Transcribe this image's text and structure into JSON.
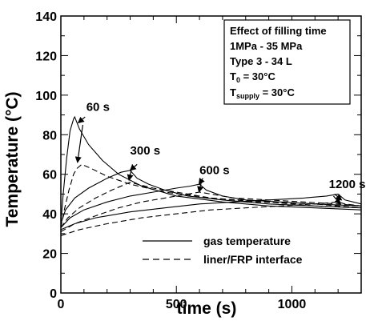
{
  "chart_data": {
    "type": "line",
    "title": "",
    "xlabel": "time (s)",
    "ylabel_parts": {
      "before": "Temperature (",
      "unit": "°C",
      "after": ")"
    },
    "xlim": [
      0,
      1300
    ],
    "ylim": [
      0,
      140
    ],
    "xticks": [
      0,
      500,
      1000
    ],
    "yticks": [
      0,
      20,
      40,
      60,
      80,
      100,
      120,
      140
    ],
    "info_box": {
      "title": "Effect of filling time",
      "pressure": "1MPa - 35 MPa",
      "type": "Type 3 - 34 L",
      "t0_main": "T",
      "t0_sub": "0",
      "t0_value": " = 30°C",
      "ts_main": "T",
      "ts_sub": "supply",
      "ts_value": " = 30°C"
    },
    "legend": {
      "position": "bottom-right",
      "entries": [
        {
          "label": "gas temperature",
          "style": "solid"
        },
        {
          "label": "liner/FRP interface",
          "style": "dashed"
        }
      ]
    },
    "annotations": [
      {
        "text": "60 s",
        "x": 110,
        "y": 92
      },
      {
        "text": "300 s",
        "x": 300,
        "y": 70
      },
      {
        "text": "600 s",
        "x": 600,
        "y": 60
      },
      {
        "text": "1200 s",
        "x": 1160,
        "y": 53
      }
    ],
    "arrows": [
      {
        "from": [
          105,
          89
        ],
        "to": [
          75,
          86
        ]
      },
      {
        "from": [
          95,
          85
        ],
        "to": [
          72,
          66
        ]
      },
      {
        "from": [
          330,
          65
        ],
        "to": [
          300,
          62
        ]
      },
      {
        "from": [
          310,
          65
        ],
        "to": [
          295,
          57
        ]
      },
      {
        "from": [
          615,
          58
        ],
        "to": [
          598,
          55
        ]
      },
      {
        "from": [
          610,
          57
        ],
        "to": [
          598,
          51
        ]
      },
      {
        "from": [
          1185,
          50
        ],
        "to": [
          1215,
          47
        ]
      },
      {
        "from": [
          1180,
          49
        ],
        "to": [
          1210,
          45
        ]
      }
    ],
    "series": [
      {
        "style": "solid",
        "points": [
          [
            0,
            35
          ],
          [
            10,
            50
          ],
          [
            25,
            68
          ],
          [
            40,
            82
          ],
          [
            55,
            88
          ],
          [
            60,
            89
          ],
          [
            80,
            83
          ],
          [
            120,
            75
          ],
          [
            180,
            67
          ],
          [
            250,
            60
          ],
          [
            350,
            54
          ],
          [
            500,
            49
          ],
          [
            700,
            46
          ],
          [
            900,
            44
          ],
          [
            1100,
            43
          ],
          [
            1300,
            42
          ]
        ]
      },
      {
        "style": "dashed",
        "points": [
          [
            0,
            33
          ],
          [
            15,
            42
          ],
          [
            35,
            52
          ],
          [
            55,
            60
          ],
          [
            60,
            61
          ],
          [
            70,
            63
          ],
          [
            90,
            65
          ],
          [
            130,
            63
          ],
          [
            200,
            59
          ],
          [
            300,
            55
          ],
          [
            450,
            51
          ],
          [
            650,
            48
          ],
          [
            900,
            46
          ],
          [
            1100,
            44
          ],
          [
            1300,
            43
          ]
        ]
      },
      {
        "style": "solid",
        "points": [
          [
            0,
            35
          ],
          [
            20,
            42
          ],
          [
            60,
            48
          ],
          [
            120,
            53
          ],
          [
            200,
            58
          ],
          [
            260,
            61
          ],
          [
            300,
            62
          ],
          [
            330,
            58
          ],
          [
            380,
            55
          ],
          [
            450,
            52
          ],
          [
            550,
            49
          ],
          [
            700,
            47
          ],
          [
            900,
            45
          ],
          [
            1100,
            44
          ],
          [
            1300,
            43
          ]
        ]
      },
      {
        "style": "dashed",
        "points": [
          [
            0,
            33
          ],
          [
            30,
            38
          ],
          [
            80,
            43
          ],
          [
            150,
            48
          ],
          [
            220,
            52
          ],
          [
            280,
            55
          ],
          [
            300,
            56
          ],
          [
            330,
            55
          ],
          [
            400,
            53
          ],
          [
            500,
            51
          ],
          [
            650,
            48
          ],
          [
            850,
            46
          ],
          [
            1100,
            45
          ],
          [
            1300,
            43
          ]
        ]
      },
      {
        "style": "solid",
        "points": [
          [
            0,
            33
          ],
          [
            40,
            38
          ],
          [
            100,
            42
          ],
          [
            200,
            46
          ],
          [
            300,
            49
          ],
          [
            400,
            51
          ],
          [
            500,
            53
          ],
          [
            560,
            54
          ],
          [
            600,
            55
          ],
          [
            630,
            52
          ],
          [
            700,
            49
          ],
          [
            800,
            47
          ],
          [
            950,
            46
          ],
          [
            1100,
            45
          ],
          [
            1300,
            44
          ]
        ]
      },
      {
        "style": "dashed",
        "points": [
          [
            0,
            31
          ],
          [
            60,
            35
          ],
          [
            150,
            39
          ],
          [
            250,
            43
          ],
          [
            350,
            46
          ],
          [
            450,
            48
          ],
          [
            550,
            50
          ],
          [
            600,
            51
          ],
          [
            650,
            50
          ],
          [
            750,
            48
          ],
          [
            900,
            47
          ],
          [
            1050,
            46
          ],
          [
            1200,
            45
          ],
          [
            1300,
            44
          ]
        ]
      },
      {
        "style": "solid",
        "points": [
          [
            0,
            32
          ],
          [
            60,
            35
          ],
          [
            150,
            38
          ],
          [
            300,
            41
          ],
          [
            450,
            43
          ],
          [
            600,
            45
          ],
          [
            750,
            46
          ],
          [
            900,
            47
          ],
          [
            1050,
            48
          ],
          [
            1150,
            49
          ],
          [
            1200,
            50
          ],
          [
            1230,
            47
          ],
          [
            1300,
            45
          ]
        ]
      },
      {
        "style": "dashed",
        "points": [
          [
            0,
            29
          ],
          [
            80,
            32
          ],
          [
            200,
            35
          ],
          [
            350,
            38
          ],
          [
            500,
            40
          ],
          [
            650,
            42
          ],
          [
            800,
            43
          ],
          [
            950,
            44
          ],
          [
            1100,
            45
          ],
          [
            1200,
            46
          ],
          [
            1230,
            45
          ],
          [
            1300,
            44
          ]
        ]
      }
    ]
  }
}
